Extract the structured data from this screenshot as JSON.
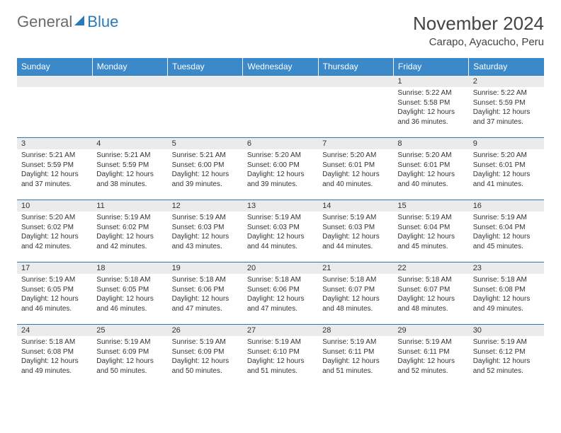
{
  "logo": {
    "word1": "General",
    "word2": "Blue"
  },
  "title": "November 2024",
  "location": "Carapo, Ayacucho, Peru",
  "weekdays": [
    "Sunday",
    "Monday",
    "Tuesday",
    "Wednesday",
    "Thursday",
    "Friday",
    "Saturday"
  ],
  "colors": {
    "header_bg": "#3b89c9",
    "row_border": "#2a7ab8",
    "daynum_bg": "#ebebeb",
    "text": "#333333"
  },
  "weeks": [
    [
      null,
      null,
      null,
      null,
      null,
      {
        "n": "1",
        "sr": "Sunrise: 5:22 AM",
        "ss": "Sunset: 5:58 PM",
        "d1": "Daylight: 12 hours",
        "d2": "and 36 minutes."
      },
      {
        "n": "2",
        "sr": "Sunrise: 5:22 AM",
        "ss": "Sunset: 5:59 PM",
        "d1": "Daylight: 12 hours",
        "d2": "and 37 minutes."
      }
    ],
    [
      {
        "n": "3",
        "sr": "Sunrise: 5:21 AM",
        "ss": "Sunset: 5:59 PM",
        "d1": "Daylight: 12 hours",
        "d2": "and 37 minutes."
      },
      {
        "n": "4",
        "sr": "Sunrise: 5:21 AM",
        "ss": "Sunset: 5:59 PM",
        "d1": "Daylight: 12 hours",
        "d2": "and 38 minutes."
      },
      {
        "n": "5",
        "sr": "Sunrise: 5:21 AM",
        "ss": "Sunset: 6:00 PM",
        "d1": "Daylight: 12 hours",
        "d2": "and 39 minutes."
      },
      {
        "n": "6",
        "sr": "Sunrise: 5:20 AM",
        "ss": "Sunset: 6:00 PM",
        "d1": "Daylight: 12 hours",
        "d2": "and 39 minutes."
      },
      {
        "n": "7",
        "sr": "Sunrise: 5:20 AM",
        "ss": "Sunset: 6:01 PM",
        "d1": "Daylight: 12 hours",
        "d2": "and 40 minutes."
      },
      {
        "n": "8",
        "sr": "Sunrise: 5:20 AM",
        "ss": "Sunset: 6:01 PM",
        "d1": "Daylight: 12 hours",
        "d2": "and 40 minutes."
      },
      {
        "n": "9",
        "sr": "Sunrise: 5:20 AM",
        "ss": "Sunset: 6:01 PM",
        "d1": "Daylight: 12 hours",
        "d2": "and 41 minutes."
      }
    ],
    [
      {
        "n": "10",
        "sr": "Sunrise: 5:20 AM",
        "ss": "Sunset: 6:02 PM",
        "d1": "Daylight: 12 hours",
        "d2": "and 42 minutes."
      },
      {
        "n": "11",
        "sr": "Sunrise: 5:19 AM",
        "ss": "Sunset: 6:02 PM",
        "d1": "Daylight: 12 hours",
        "d2": "and 42 minutes."
      },
      {
        "n": "12",
        "sr": "Sunrise: 5:19 AM",
        "ss": "Sunset: 6:03 PM",
        "d1": "Daylight: 12 hours",
        "d2": "and 43 minutes."
      },
      {
        "n": "13",
        "sr": "Sunrise: 5:19 AM",
        "ss": "Sunset: 6:03 PM",
        "d1": "Daylight: 12 hours",
        "d2": "and 44 minutes."
      },
      {
        "n": "14",
        "sr": "Sunrise: 5:19 AM",
        "ss": "Sunset: 6:03 PM",
        "d1": "Daylight: 12 hours",
        "d2": "and 44 minutes."
      },
      {
        "n": "15",
        "sr": "Sunrise: 5:19 AM",
        "ss": "Sunset: 6:04 PM",
        "d1": "Daylight: 12 hours",
        "d2": "and 45 minutes."
      },
      {
        "n": "16",
        "sr": "Sunrise: 5:19 AM",
        "ss": "Sunset: 6:04 PM",
        "d1": "Daylight: 12 hours",
        "d2": "and 45 minutes."
      }
    ],
    [
      {
        "n": "17",
        "sr": "Sunrise: 5:19 AM",
        "ss": "Sunset: 6:05 PM",
        "d1": "Daylight: 12 hours",
        "d2": "and 46 minutes."
      },
      {
        "n": "18",
        "sr": "Sunrise: 5:18 AM",
        "ss": "Sunset: 6:05 PM",
        "d1": "Daylight: 12 hours",
        "d2": "and 46 minutes."
      },
      {
        "n": "19",
        "sr": "Sunrise: 5:18 AM",
        "ss": "Sunset: 6:06 PM",
        "d1": "Daylight: 12 hours",
        "d2": "and 47 minutes."
      },
      {
        "n": "20",
        "sr": "Sunrise: 5:18 AM",
        "ss": "Sunset: 6:06 PM",
        "d1": "Daylight: 12 hours",
        "d2": "and 47 minutes."
      },
      {
        "n": "21",
        "sr": "Sunrise: 5:18 AM",
        "ss": "Sunset: 6:07 PM",
        "d1": "Daylight: 12 hours",
        "d2": "and 48 minutes."
      },
      {
        "n": "22",
        "sr": "Sunrise: 5:18 AM",
        "ss": "Sunset: 6:07 PM",
        "d1": "Daylight: 12 hours",
        "d2": "and 48 minutes."
      },
      {
        "n": "23",
        "sr": "Sunrise: 5:18 AM",
        "ss": "Sunset: 6:08 PM",
        "d1": "Daylight: 12 hours",
        "d2": "and 49 minutes."
      }
    ],
    [
      {
        "n": "24",
        "sr": "Sunrise: 5:18 AM",
        "ss": "Sunset: 6:08 PM",
        "d1": "Daylight: 12 hours",
        "d2": "and 49 minutes."
      },
      {
        "n": "25",
        "sr": "Sunrise: 5:19 AM",
        "ss": "Sunset: 6:09 PM",
        "d1": "Daylight: 12 hours",
        "d2": "and 50 minutes."
      },
      {
        "n": "26",
        "sr": "Sunrise: 5:19 AM",
        "ss": "Sunset: 6:09 PM",
        "d1": "Daylight: 12 hours",
        "d2": "and 50 minutes."
      },
      {
        "n": "27",
        "sr": "Sunrise: 5:19 AM",
        "ss": "Sunset: 6:10 PM",
        "d1": "Daylight: 12 hours",
        "d2": "and 51 minutes."
      },
      {
        "n": "28",
        "sr": "Sunrise: 5:19 AM",
        "ss": "Sunset: 6:11 PM",
        "d1": "Daylight: 12 hours",
        "d2": "and 51 minutes."
      },
      {
        "n": "29",
        "sr": "Sunrise: 5:19 AM",
        "ss": "Sunset: 6:11 PM",
        "d1": "Daylight: 12 hours",
        "d2": "and 52 minutes."
      },
      {
        "n": "30",
        "sr": "Sunrise: 5:19 AM",
        "ss": "Sunset: 6:12 PM",
        "d1": "Daylight: 12 hours",
        "d2": "and 52 minutes."
      }
    ]
  ]
}
